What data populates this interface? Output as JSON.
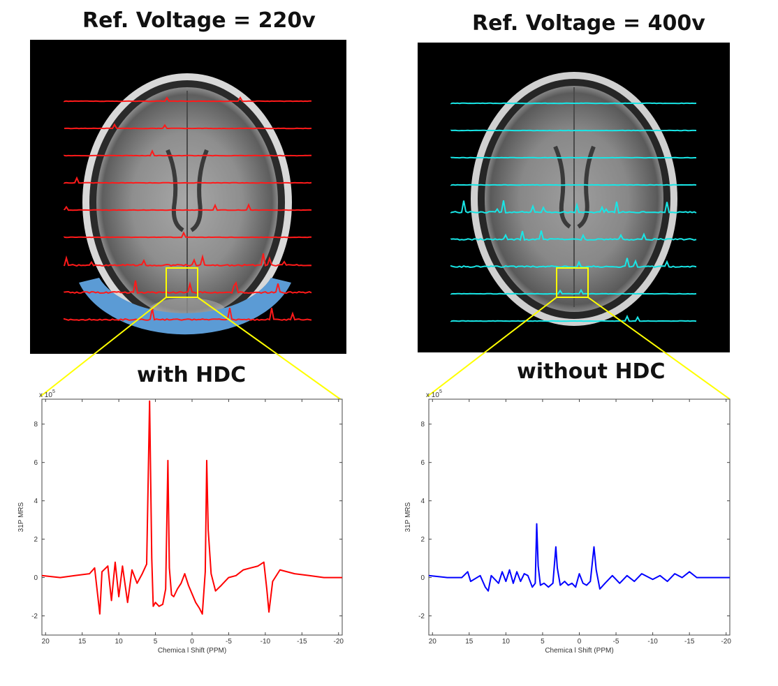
{
  "panels": {
    "left": {
      "title": "Ref. Voltage = 220v",
      "label": "with HDC",
      "trace_color": "#ff1a1a"
    },
    "right": {
      "title": "Ref. Voltage = 400v",
      "label": "without HDC",
      "trace_color": "#19e6e6"
    }
  },
  "colors": {
    "highlight_box": "#ffff00",
    "coil_arc": "#5b9bd5"
  },
  "chart_data": [
    {
      "type": "line",
      "title": "",
      "xlabel": "Chemica l Shift (PPM)",
      "ylabel": "31P MRS",
      "exponent_label": "x 10",
      "exponent_power": "5",
      "xlim": [
        20.5,
        -20.5
      ],
      "ylim": [
        -3,
        9.3
      ],
      "xticks": [
        "20",
        "15",
        "10",
        "5",
        "0",
        "-5",
        "-10",
        "-15",
        "-20"
      ],
      "yticks": [
        "-2",
        "0",
        "2",
        "4",
        "6",
        "8"
      ],
      "series": [
        {
          "name": "with HDC",
          "color": "#ff0000",
          "x": [
            20.5,
            18,
            16,
            14,
            13.3,
            12.6,
            12.3,
            11.5,
            11,
            10.5,
            10,
            9.5,
            8.8,
            8.2,
            7.5,
            6.8,
            6.2,
            5.8,
            5.5,
            5.3,
            5,
            4.5,
            4,
            3.6,
            3.3,
            3.1,
            2.8,
            2.5,
            2,
            1.5,
            1,
            0.5,
            -0.5,
            -1,
            -1.4,
            -1.8,
            -2,
            -2.2,
            -2.6,
            -3.2,
            -4,
            -5,
            -6,
            -7,
            -8,
            -9,
            -9.8,
            -10.2,
            -10.5,
            -11,
            -12,
            -14,
            -16,
            -18,
            -20.5
          ],
          "values": [
            0.1,
            0.0,
            0.1,
            0.2,
            0.5,
            -1.9,
            0.3,
            0.6,
            -1.2,
            0.8,
            -1.0,
            0.6,
            -1.3,
            0.4,
            -0.3,
            0.2,
            0.7,
            9.2,
            1.0,
            -1.5,
            -1.3,
            -1.5,
            -1.4,
            -0.6,
            6.1,
            0.5,
            -0.9,
            -1.0,
            -0.6,
            -0.3,
            0.2,
            -0.4,
            -1.3,
            -1.6,
            -1.9,
            0.3,
            6.1,
            2.5,
            0.2,
            -0.7,
            -0.4,
            0.0,
            0.1,
            0.4,
            0.5,
            0.6,
            0.8,
            -0.6,
            -1.8,
            -0.2,
            0.4,
            0.2,
            0.1,
            0.0,
            0.0
          ]
        }
      ]
    },
    {
      "type": "line",
      "title": "",
      "xlabel": "Chemica l Shift (PPM)",
      "ylabel": "31P MRS",
      "exponent_label": "x 10",
      "exponent_power": "5",
      "xlim": [
        20.5,
        -20.5
      ],
      "ylim": [
        -3,
        9.3
      ],
      "xticks": [
        "20",
        "15",
        "10",
        "5",
        "0",
        "-5",
        "-10",
        "-15",
        "-20"
      ],
      "yticks": [
        "-2",
        "0",
        "2",
        "4",
        "6",
        "8"
      ],
      "series": [
        {
          "name": "without HDC",
          "color": "#0000ff",
          "x": [
            20.5,
            18,
            16,
            15.2,
            14.8,
            13.5,
            12.8,
            12.4,
            12,
            11,
            10.5,
            10,
            9.5,
            9,
            8.5,
            8,
            7.5,
            7,
            6.4,
            6,
            5.8,
            5.6,
            5.3,
            4.8,
            4.2,
            3.6,
            3.2,
            3.0,
            2.6,
            2,
            1.5,
            1,
            0.5,
            0,
            -0.5,
            -1,
            -1.5,
            -2,
            -2.3,
            -2.8,
            -3.5,
            -4.5,
            -5.5,
            -6.5,
            -7.5,
            -8.5,
            -10,
            -11,
            -12,
            -13,
            -14,
            -15,
            -16,
            -18,
            -20.5
          ],
          "values": [
            0.1,
            0.0,
            0.0,
            0.3,
            -0.2,
            0.1,
            -0.5,
            -0.7,
            0.1,
            -0.3,
            0.3,
            -0.2,
            0.4,
            -0.3,
            0.3,
            -0.2,
            0.2,
            0.1,
            -0.5,
            -0.3,
            2.8,
            0.6,
            -0.4,
            -0.3,
            -0.5,
            -0.3,
            1.6,
            0.5,
            -0.4,
            -0.2,
            -0.4,
            -0.3,
            -0.5,
            0.2,
            -0.3,
            -0.4,
            -0.2,
            1.6,
            0.4,
            -0.6,
            -0.3,
            0.1,
            -0.3,
            0.1,
            -0.2,
            0.2,
            -0.1,
            0.1,
            -0.2,
            0.2,
            0.0,
            0.3,
            0.0,
            0.0,
            0.0
          ]
        }
      ]
    }
  ]
}
